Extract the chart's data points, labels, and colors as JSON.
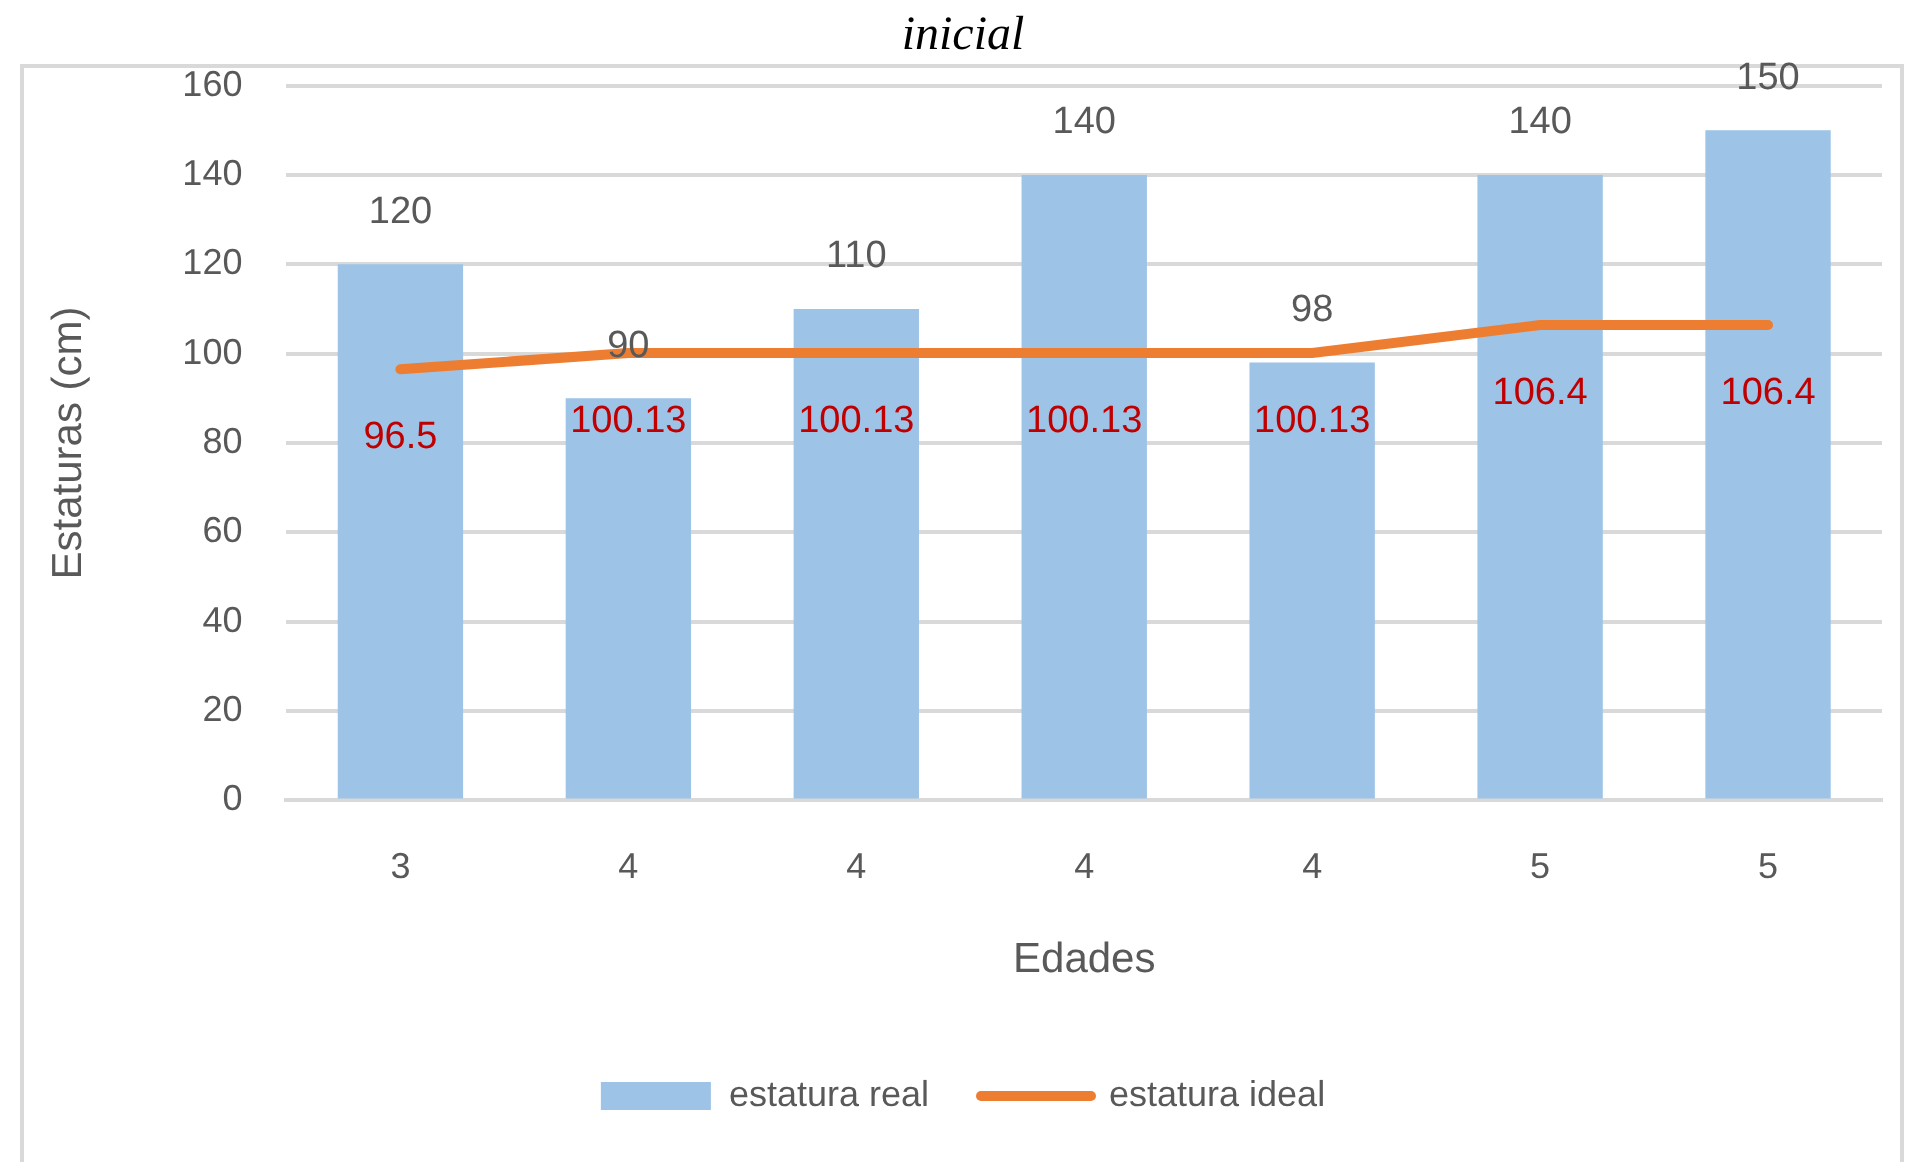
{
  "chart_data": {
    "type": "bar",
    "title": "inicial",
    "xlabel": "Edades",
    "ylabel": "Estaturas (cm)",
    "categories": [
      "3",
      "4",
      "4",
      "4",
      "4",
      "5",
      "5"
    ],
    "series": [
      {
        "name": "estatura real",
        "color": "#9dc3e6",
        "values": [
          120,
          90,
          110,
          140,
          98,
          140,
          150
        ]
      },
      {
        "name": "estatura ideal",
        "type": "line",
        "color": "#ed7d31",
        "values": [
          96.5,
          100.13,
          100.13,
          100.13,
          100.13,
          106.4,
          106.4
        ]
      }
    ],
    "ylim": [
      0,
      160
    ],
    "yticks": [
      0,
      20,
      40,
      60,
      80,
      100,
      120,
      140,
      160
    ],
    "grid": "y",
    "legend": "bottom",
    "marker": "none",
    "line_style": "solid",
    "data_labels": true
  }
}
